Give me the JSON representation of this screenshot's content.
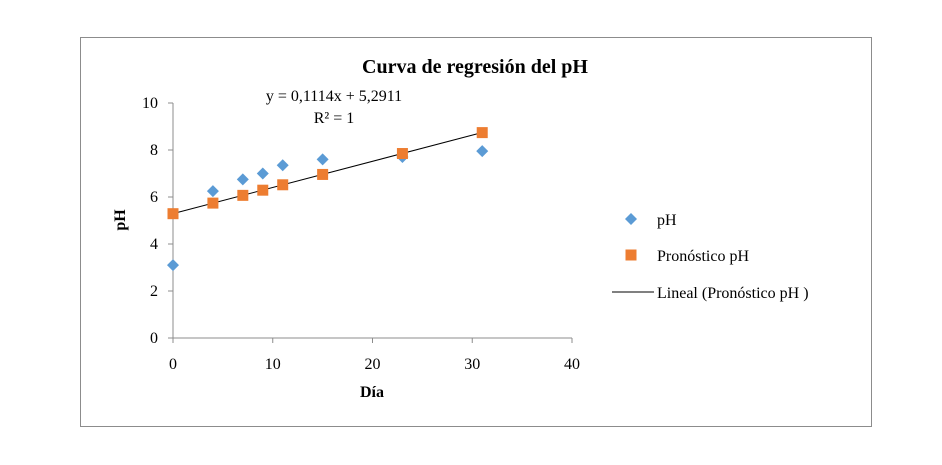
{
  "chart_data": {
    "type": "scatter",
    "title": "Curva de regresión del pH",
    "xlabel": "Día",
    "ylabel": "pH",
    "xlim": [
      0,
      40
    ],
    "ylim": [
      0,
      10
    ],
    "xticks": [
      "0",
      "10",
      "20",
      "30",
      "40"
    ],
    "yticks": [
      "0",
      "2",
      "4",
      "6",
      "8",
      "10"
    ],
    "grid": false,
    "legend_position": "right",
    "series": [
      {
        "name": "pH",
        "marker": "diamond",
        "color": "#5b9bd5",
        "points": [
          {
            "x": 0,
            "y": 3.1
          },
          {
            "x": 4,
            "y": 6.25
          },
          {
            "x": 7,
            "y": 6.75
          },
          {
            "x": 9,
            "y": 7.0
          },
          {
            "x": 11,
            "y": 7.35
          },
          {
            "x": 15,
            "y": 7.6
          },
          {
            "x": 23,
            "y": 7.7
          },
          {
            "x": 31,
            "y": 7.95
          }
        ]
      },
      {
        "name": "Pronóstico pH",
        "marker": "square",
        "color": "#ed7d31",
        "points": [
          {
            "x": 0,
            "y": 5.29
          },
          {
            "x": 4,
            "y": 5.74
          },
          {
            "x": 7,
            "y": 6.07
          },
          {
            "x": 9,
            "y": 6.29
          },
          {
            "x": 11,
            "y": 6.52
          },
          {
            "x": 15,
            "y": 6.96
          },
          {
            "x": 23,
            "y": 7.85
          },
          {
            "x": 31,
            "y": 8.74
          }
        ]
      }
    ],
    "trendline": {
      "name": "Lineal (Pronóstico pH )",
      "color": "#000000",
      "slope": 0.1114,
      "intercept": 5.2911,
      "x_range": [
        0,
        31
      ],
      "equation": "y = 0,1114x + 5,2911",
      "r2": "R² = 1"
    }
  }
}
